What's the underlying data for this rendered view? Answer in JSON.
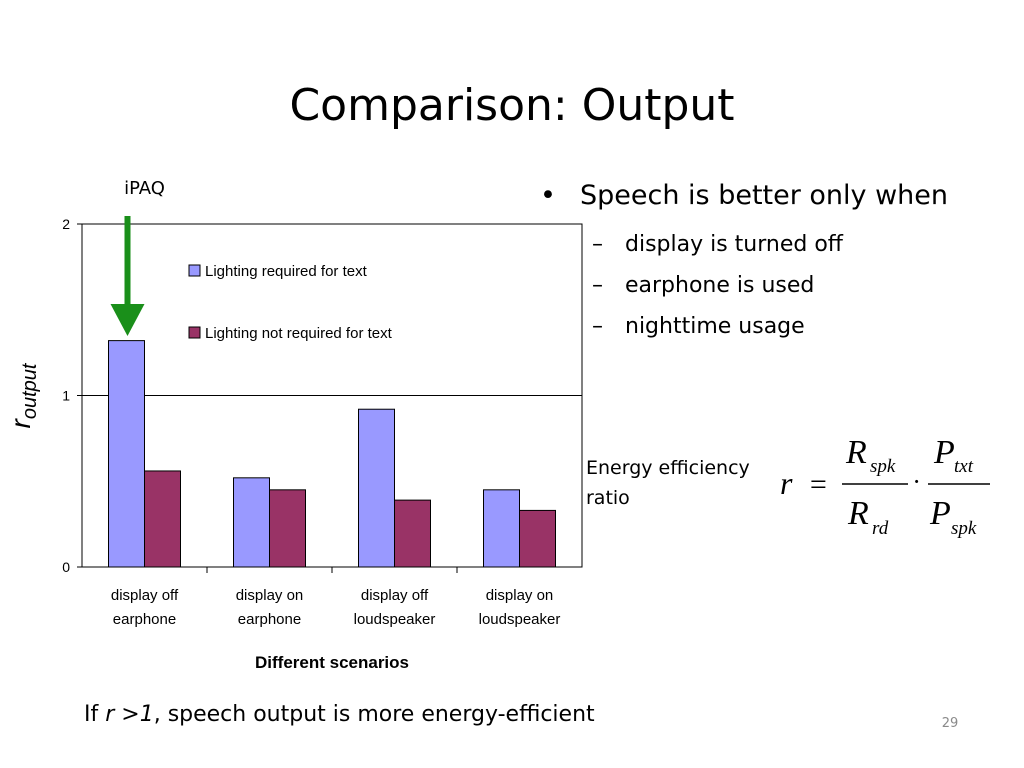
{
  "slide": {
    "title": "Comparison: Output",
    "page_number": "29"
  },
  "bullets": {
    "main": "Speech is better only when",
    "main_glyph": "•",
    "sub_glyph": "–",
    "items": [
      "display is turned off",
      "earphone is used",
      "nighttime usage"
    ]
  },
  "annotation": {
    "label": "iPAQ",
    "arrow_color": "#1a8f1a",
    "points_to_category": 0
  },
  "efficiency": {
    "label_line1": "Energy efficiency",
    "label_line2": "ratio",
    "formula": {
      "lhs": "r",
      "equals": "=",
      "dot": "·",
      "num1": "R",
      "num1_sub": "spk",
      "den1": "R",
      "den1_sub": "rd",
      "num2": "P",
      "num2_sub": "txt",
      "den2": "P",
      "den2_sub": "spk"
    }
  },
  "footer": {
    "prefix": "If ",
    "condition": "r >1",
    "suffix": ", speech output is more energy-efficient"
  },
  "chart_data": {
    "type": "bar",
    "categories": [
      [
        "display off",
        "earphone"
      ],
      [
        "display on",
        "earphone"
      ],
      [
        "display off",
        "loudspeaker"
      ],
      [
        "display on",
        "loudspeaker"
      ]
    ],
    "series": [
      {
        "name": "Lighting required for text",
        "values": [
          1.32,
          0.52,
          0.92,
          0.45
        ],
        "color": "#9999ff"
      },
      {
        "name": "Lighting not required for text",
        "values": [
          0.56,
          0.45,
          0.39,
          0.33
        ],
        "color": "#993366"
      }
    ],
    "ylim": [
      0,
      2
    ],
    "yticks": [
      0,
      1,
      2
    ],
    "gridlines": [
      1
    ],
    "xlabel": "Different scenarios",
    "ylabel_main": "r",
    "ylabel_sub": "output",
    "legend": "inside-top"
  }
}
